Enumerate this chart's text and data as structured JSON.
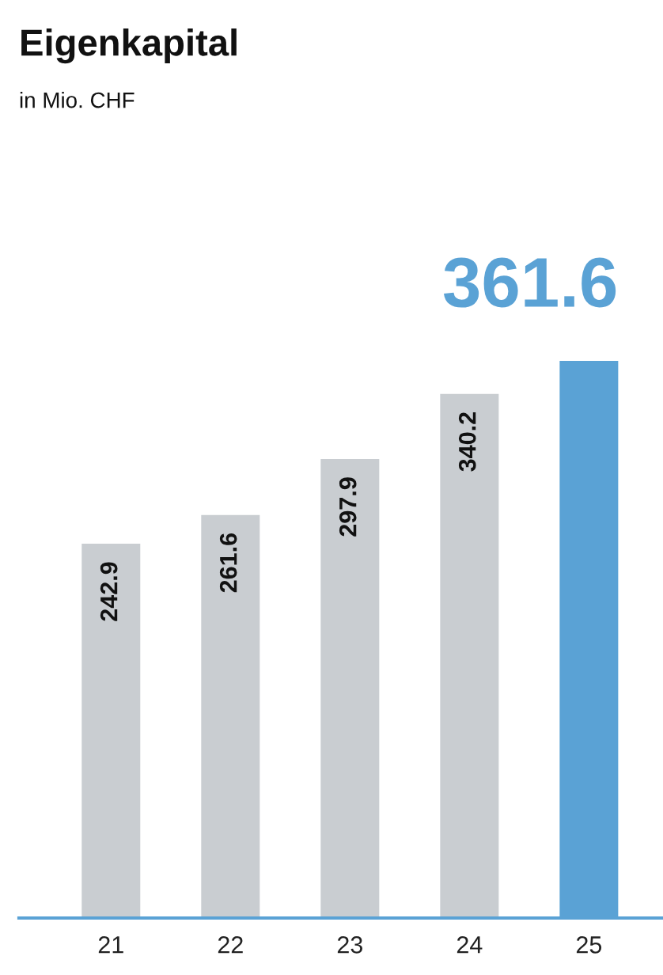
{
  "chart_data": {
    "type": "bar",
    "title": "Eigenkapital",
    "subtitle": "in Mio. CHF",
    "categories": [
      "21",
      "22",
      "23",
      "24",
      "25"
    ],
    "values": [
      242.9,
      261.6,
      297.9,
      340.2,
      361.6
    ],
    "colors": [
      "#c9cdd1",
      "#c9cdd1",
      "#c9cdd1",
      "#c9cdd1",
      "#5aa2d5"
    ],
    "data_labels": true,
    "grid": false,
    "legend": false
  }
}
